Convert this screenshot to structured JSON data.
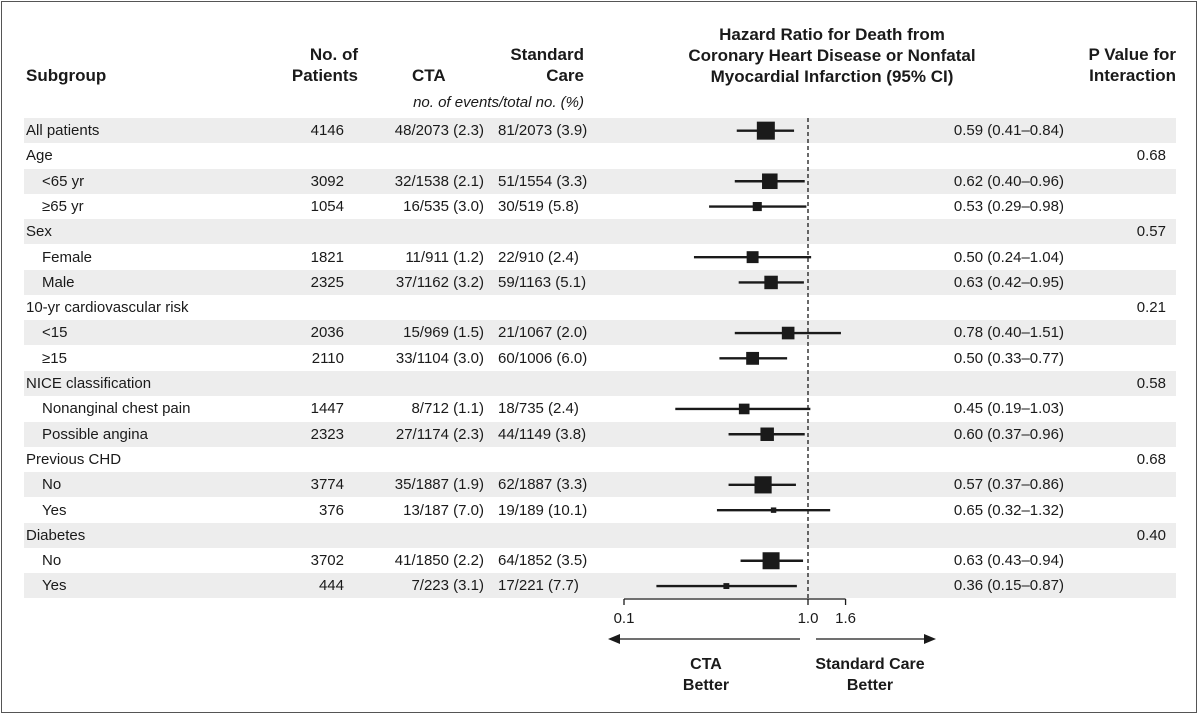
{
  "headers": {
    "subgroup": "Subgroup",
    "patients": "No. of\nPatients",
    "cta": "CTA",
    "standard_care": "Standard\nCare",
    "hazard_ratio": "Hazard Ratio for Death from\nCoronary Heart Disease or Nonfatal\nMyocardial Infarction (95% CI)",
    "p_value": "P Value for\nInteraction",
    "events_note": "no. of events/total no. (%)"
  },
  "rows": [
    {
      "label": "All patients",
      "indent": false,
      "n": "4146",
      "cta": "48/2073 (2.3)",
      "std": "81/2073 (3.9)",
      "hr_text": "0.59 (0.41–0.84)",
      "p": ""
    },
    {
      "label": "Age",
      "indent": false,
      "n": "",
      "cta": "",
      "std": "",
      "hr_text": "",
      "p": "0.68"
    },
    {
      "label": "<65 yr",
      "indent": true,
      "n": "3092",
      "cta": "32/1538 (2.1)",
      "std": "51/1554 (3.3)",
      "hr_text": "0.62 (0.40–0.96)",
      "p": ""
    },
    {
      "label": "≥65 yr",
      "indent": true,
      "n": "1054",
      "cta": "16/535 (3.0)",
      "std": "30/519 (5.8)",
      "hr_text": "0.53 (0.29–0.98)",
      "p": ""
    },
    {
      "label": "Sex",
      "indent": false,
      "n": "",
      "cta": "",
      "std": "",
      "hr_text": "",
      "p": "0.57"
    },
    {
      "label": "Female",
      "indent": true,
      "n": "1821",
      "cta": "11/911 (1.2)",
      "std": "22/910 (2.4)",
      "hr_text": "0.50 (0.24–1.04)",
      "p": ""
    },
    {
      "label": "Male",
      "indent": true,
      "n": "2325",
      "cta": "37/1162 (3.2)",
      "std": "59/1163 (5.1)",
      "hr_text": "0.63 (0.42–0.95)",
      "p": ""
    },
    {
      "label": "10-yr cardiovascular risk",
      "indent": false,
      "n": "",
      "cta": "",
      "std": "",
      "hr_text": "",
      "p": "0.21"
    },
    {
      "label": "<15",
      "indent": true,
      "n": "2036",
      "cta": "15/969 (1.5)",
      "std": "21/1067 (2.0)",
      "hr_text": "0.78 (0.40–1.51)",
      "p": ""
    },
    {
      "label": "≥15",
      "indent": true,
      "n": "2110",
      "cta": "33/1104 (3.0)",
      "std": "60/1006 (6.0)",
      "hr_text": "0.50 (0.33–0.77)",
      "p": ""
    },
    {
      "label": "NICE classification",
      "indent": false,
      "n": "",
      "cta": "",
      "std": "",
      "hr_text": "",
      "p": "0.58"
    },
    {
      "label": "Nonanginal chest pain",
      "indent": true,
      "n": "1447",
      "cta": "8/712 (1.1)",
      "std": "18/735 (2.4)",
      "hr_text": "0.45 (0.19–1.03)",
      "p": ""
    },
    {
      "label": "Possible angina",
      "indent": true,
      "n": "2323",
      "cta": "27/1174 (2.3)",
      "std": "44/1149 (3.8)",
      "hr_text": "0.60 (0.37–0.96)",
      "p": ""
    },
    {
      "label": "Previous CHD",
      "indent": false,
      "n": "",
      "cta": "",
      "std": "",
      "hr_text": "",
      "p": "0.68"
    },
    {
      "label": "No",
      "indent": true,
      "n": "3774",
      "cta": "35/1887 (1.9)",
      "std": "62/1887 (3.3)",
      "hr_text": "0.57 (0.37–0.86)",
      "p": ""
    },
    {
      "label": "Yes",
      "indent": true,
      "n": "376",
      "cta": "13/187 (7.0)",
      "std": "19/189 (10.1)",
      "hr_text": "0.65 (0.32–1.32)",
      "p": ""
    },
    {
      "label": "Diabetes",
      "indent": false,
      "n": "",
      "cta": "",
      "std": "",
      "hr_text": "",
      "p": "0.40"
    },
    {
      "label": "No",
      "indent": true,
      "n": "3702",
      "cta": "41/1850 (2.2)",
      "std": "64/1852 (3.5)",
      "hr_text": "0.63 (0.43–0.94)",
      "p": ""
    },
    {
      "label": "Yes",
      "indent": true,
      "n": "444",
      "cta": "7/223 (3.1)",
      "std": "17/221 (7.7)",
      "hr_text": "0.36 (0.15–0.87)",
      "p": ""
    }
  ],
  "chart_data": {
    "type": "forest",
    "x_scale": "log",
    "x_ticks": [
      "0.1",
      "1.0",
      "1.6"
    ],
    "reference_line": 1.0,
    "xlim": [
      0.1,
      1.6
    ],
    "direction_labels": {
      "left": "CTA\nBetter",
      "right": "Standard Care\nBetter"
    },
    "points": [
      {
        "row": 0,
        "hr": 0.59,
        "lo": 0.41,
        "hi": 0.84,
        "n": 4146
      },
      {
        "row": 2,
        "hr": 0.62,
        "lo": 0.4,
        "hi": 0.96,
        "n": 3092
      },
      {
        "row": 3,
        "hr": 0.53,
        "lo": 0.29,
        "hi": 0.98,
        "n": 1054
      },
      {
        "row": 5,
        "hr": 0.5,
        "lo": 0.24,
        "hi": 1.04,
        "n": 1821
      },
      {
        "row": 6,
        "hr": 0.63,
        "lo": 0.42,
        "hi": 0.95,
        "n": 2325
      },
      {
        "row": 8,
        "hr": 0.78,
        "lo": 0.4,
        "hi": 1.51,
        "n": 2036
      },
      {
        "row": 9,
        "hr": 0.5,
        "lo": 0.33,
        "hi": 0.77,
        "n": 2110
      },
      {
        "row": 11,
        "hr": 0.45,
        "lo": 0.19,
        "hi": 1.03,
        "n": 1447
      },
      {
        "row": 12,
        "hr": 0.6,
        "lo": 0.37,
        "hi": 0.96,
        "n": 2323
      },
      {
        "row": 14,
        "hr": 0.57,
        "lo": 0.37,
        "hi": 0.86,
        "n": 3774
      },
      {
        "row": 15,
        "hr": 0.65,
        "lo": 0.32,
        "hi": 1.32,
        "n": 376
      },
      {
        "row": 17,
        "hr": 0.63,
        "lo": 0.43,
        "hi": 0.94,
        "n": 3702
      },
      {
        "row": 18,
        "hr": 0.36,
        "lo": 0.15,
        "hi": 0.87,
        "n": 444
      }
    ]
  },
  "colors": {
    "shade": "#ededed",
    "ink": "#1a1a1a",
    "border": "#555555"
  }
}
